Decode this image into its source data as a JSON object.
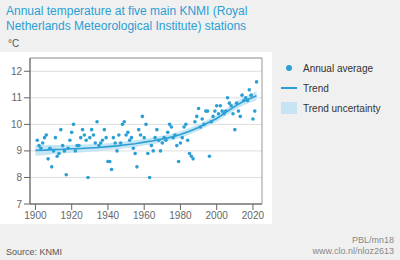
{
  "chart_data": {
    "type": "scatter",
    "title": [
      "Annual temperature at five main KNMI (Royal",
      "Netherlands Meteorological Institute) stations"
    ],
    "y_label": "°C",
    "source": "Source: KNMI",
    "annotations": [
      "PBL/mn18",
      "www.clo.nl/nloz2613"
    ],
    "xlim": [
      1897,
      2025
    ],
    "ylim": [
      7,
      12.5
    ],
    "xticks": [
      1900,
      1920,
      1940,
      1960,
      1980,
      2000,
      2020
    ],
    "yticks": [
      7,
      8,
      9,
      10,
      11,
      12
    ],
    "grid": true,
    "legend": "right",
    "series": [
      {
        "name": "Annual average",
        "type": "scatter",
        "color": "#2b9fd4",
        "x": [
          1901,
          1902,
          1903,
          1904,
          1905,
          1906,
          1907,
          1908,
          1909,
          1910,
          1911,
          1912,
          1913,
          1914,
          1915,
          1916,
          1917,
          1918,
          1919,
          1920,
          1921,
          1922,
          1923,
          1924,
          1925,
          1926,
          1927,
          1928,
          1929,
          1930,
          1931,
          1932,
          1933,
          1934,
          1935,
          1936,
          1937,
          1938,
          1939,
          1940,
          1941,
          1942,
          1943,
          1944,
          1945,
          1946,
          1947,
          1948,
          1949,
          1950,
          1951,
          1952,
          1953,
          1954,
          1955,
          1956,
          1957,
          1958,
          1959,
          1960,
          1961,
          1962,
          1963,
          1964,
          1965,
          1966,
          1967,
          1968,
          1969,
          1970,
          1971,
          1972,
          1973,
          1974,
          1975,
          1976,
          1977,
          1978,
          1979,
          1980,
          1981,
          1982,
          1983,
          1984,
          1985,
          1986,
          1987,
          1988,
          1989,
          1990,
          1991,
          1992,
          1993,
          1994,
          1995,
          1996,
          1997,
          1998,
          1999,
          2000,
          2001,
          2002,
          2003,
          2004,
          2005,
          2006,
          2007,
          2008,
          2009,
          2010,
          2011,
          2012,
          2013,
          2014,
          2015,
          2016,
          2017,
          2018,
          2019,
          2020,
          2021,
          2022
        ],
        "values": [
          9.4,
          9.2,
          9.1,
          9.3,
          9.5,
          9.6,
          8.7,
          9.1,
          8.4,
          9.0,
          9.5,
          8.8,
          8.9,
          9.8,
          9.2,
          9.0,
          8.1,
          9.1,
          9.4,
          9.7,
          10.0,
          9.0,
          9.2,
          9.2,
          9.5,
          9.8,
          9.6,
          9.4,
          8.0,
          9.5,
          9.8,
          9.6,
          9.3,
          10.1,
          9.2,
          9.3,
          9.4,
          9.8,
          9.5,
          8.6,
          8.6,
          8.3,
          9.5,
          9.3,
          9.0,
          9.6,
          9.3,
          10.0,
          10.1,
          9.6,
          9.7,
          9.4,
          9.5,
          9.1,
          8.9,
          8.4,
          9.8,
          9.6,
          10.3,
          9.5,
          10.0,
          8.9,
          8.0,
          9.2,
          9.0,
          9.5,
          9.8,
          9.4,
          9.0,
          9.3,
          9.5,
          9.4,
          9.7,
          10.0,
          9.9,
          9.5,
          9.6,
          9.2,
          8.6,
          9.3,
          9.5,
          9.9,
          10.0,
          9.4,
          8.9,
          8.8,
          8.7,
          10.1,
          10.3,
          10.6,
          9.9,
          10.2,
          10.0,
          10.5,
          10.5,
          8.8,
          10.1,
          10.3,
          10.5,
          10.7,
          10.4,
          10.7,
          10.5,
          10.4,
          10.5,
          11.0,
          10.8,
          10.7,
          10.4,
          9.8,
          10.8,
          10.5,
          10.3,
          11.1,
          10.9,
          11.0,
          10.9,
          11.3,
          11.1,
          10.2,
          10.5,
          11.6
        ]
      },
      {
        "name": "Trend",
        "type": "line",
        "color": "#2b9fd4",
        "line_style": "solid",
        "x": [
          1900,
          1905,
          1910,
          1915,
          1920,
          1925,
          1930,
          1935,
          1940,
          1945,
          1950,
          1955,
          1960,
          1965,
          1970,
          1975,
          1980,
          1985,
          1990,
          1995,
          2000,
          2005,
          2010,
          2015,
          2022
        ],
        "values": [
          9.02,
          9.03,
          9.05,
          9.06,
          9.08,
          9.09,
          9.11,
          9.13,
          9.16,
          9.19,
          9.23,
          9.27,
          9.33,
          9.38,
          9.45,
          9.52,
          9.62,
          9.74,
          9.88,
          10.05,
          10.22,
          10.45,
          10.68,
          10.88,
          11.08
        ]
      },
      {
        "name": "Trend uncertainty",
        "type": "band",
        "color": "#c5e5f5",
        "x": [
          1900,
          1905,
          1910,
          1915,
          1920,
          1925,
          1930,
          1935,
          1940,
          1945,
          1950,
          1955,
          1960,
          1965,
          1970,
          1975,
          1980,
          1985,
          1990,
          1995,
          2000,
          2005,
          2010,
          2015,
          2022
        ],
        "lower": [
          8.82,
          8.84,
          8.88,
          8.9,
          8.93,
          8.94,
          8.97,
          8.99,
          9.03,
          9.06,
          9.1,
          9.14,
          9.2,
          9.25,
          9.33,
          9.4,
          9.5,
          9.62,
          9.76,
          9.93,
          10.09,
          10.32,
          10.54,
          10.73,
          10.91
        ],
        "upper": [
          9.22,
          9.22,
          9.22,
          9.22,
          9.23,
          9.24,
          9.25,
          9.27,
          9.29,
          9.32,
          9.36,
          9.4,
          9.46,
          9.51,
          9.57,
          9.64,
          9.74,
          9.86,
          10.0,
          10.17,
          10.35,
          10.58,
          10.82,
          11.03,
          11.25
        ]
      }
    ]
  }
}
